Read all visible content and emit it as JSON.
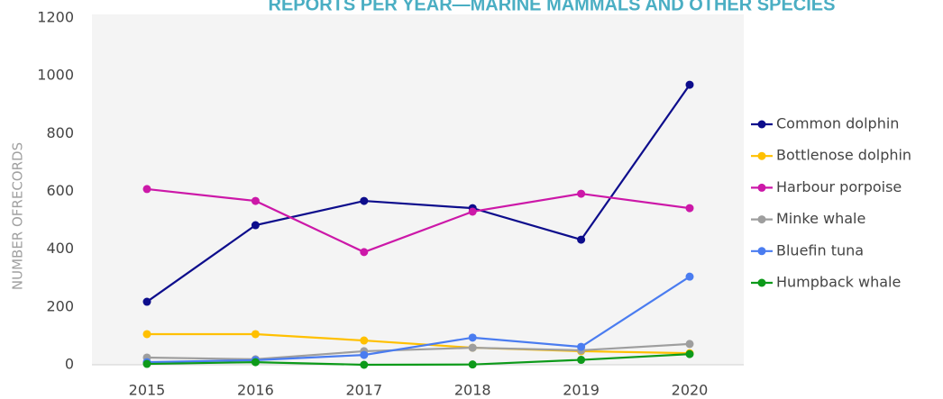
{
  "chart_data": {
    "type": "line",
    "title": "REPORTS PER YEAR—MARINE MAMMALS AND OTHER SPECIES",
    "y_label": "NUMBER OFRECORDS",
    "categories": [
      "2015",
      "2016",
      "2017",
      "2018",
      "2019",
      "2020"
    ],
    "series": [
      {
        "name": "Common dolphin",
        "color": "#0d0d8c",
        "values": [
          218,
          483,
          567,
          542,
          433,
          969
        ]
      },
      {
        "name": "Bottlenose dolphin",
        "color": "#ffc000",
        "values": [
          106,
          106,
          84,
          59,
          47,
          40
        ]
      },
      {
        "name": "Harbour porpoise",
        "color": "#cc18a8",
        "values": [
          608,
          567,
          390,
          530,
          592,
          542
        ]
      },
      {
        "name": "Minke whale",
        "color": "#9e9e9e",
        "values": [
          25,
          19,
          47,
          59,
          50,
          72
        ]
      },
      {
        "name": "Bluefin tuna",
        "color": "#4a7cf0",
        "values": [
          9,
          16,
          34,
          94,
          62,
          305
        ]
      },
      {
        "name": "Humpback whale",
        "color": "#0d9a1a",
        "values": [
          3,
          9,
          0,
          1,
          17,
          37
        ]
      }
    ],
    "ylim": [
      0,
      1200
    ],
    "yticks": [
      0,
      200,
      400,
      600,
      800,
      1000,
      1200
    ],
    "legend": "right"
  }
}
